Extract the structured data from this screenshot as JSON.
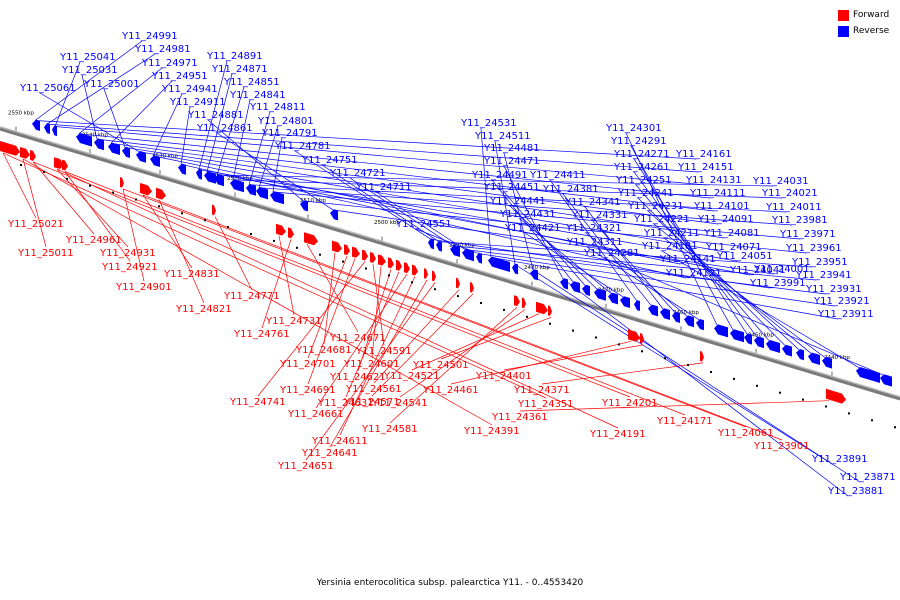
{
  "caption": "Yersinia enterocolitica subsp. palearctica Y11. - 0..4553420",
  "legend": [
    {
      "label": "Forward",
      "color": "#ff0000"
    },
    {
      "label": "Reverse",
      "color": "#0000ff"
    }
  ],
  "colors": {
    "forward": "#ff0000",
    "reverse": "#0000ff",
    "backbone": "#7a7a7a"
  },
  "scale_ticks": [
    "2550 kbp",
    "2540 kbp",
    "2530 kbp",
    "2520 kbp",
    "2510 kbp",
    "2500 kbp",
    "2490 kbp",
    "2480 kbp",
    "2470 kbp",
    "2460 kbp",
    "2450 kbp",
    "2440 kbp"
  ],
  "reverse_genes": [
    "Y11_24991",
    "Y11_24981",
    "Y11_25041",
    "Y11_24971",
    "Y11_25031",
    "Y11_24951",
    "Y11_25001",
    "Y11_25061",
    "Y11_24941",
    "Y11_24911",
    "Y11_24891",
    "Y11_24871",
    "Y11_24851",
    "Y11_24841",
    "Y11_24811",
    "Y11_24801",
    "Y11_24791",
    "Y11_24881",
    "Y11_24861",
    "Y11_24781",
    "Y11_24751",
    "Y11_24721",
    "Y11_24711",
    "Y11_24551",
    "Y11_24531",
    "Y11_24511",
    "Y11_24481",
    "Y11_24471",
    "Y11_24491",
    "Y11_24451",
    "Y11_24441",
    "Y11_24431",
    "Y11_24421",
    "Y11_24411",
    "Y11_24381",
    "Y11_24341",
    "Y11_24331",
    "Y11_24321",
    "Y11_24311",
    "Y11_24301",
    "Y11_24291",
    "Y11_24271",
    "Y11_24261",
    "Y11_24251",
    "Y11_24241",
    "Y11_24231",
    "Y11_24221",
    "Y11_24211",
    "Y11_24181",
    "Y11_24281",
    "Y11_24161",
    "Y11_24151",
    "Y11_24131",
    "Y11_24111",
    "Y11_24101",
    "Y11_24091",
    "Y11_24081",
    "Y11_24071",
    "Y11_24141",
    "Y11_24121",
    "Y11_24051",
    "Y11_24041",
    "Y11_24031",
    "Y11_24021",
    "Y11_24011",
    "Y11_23981",
    "Y11_23971",
    "Y11_23961",
    "Y11_24001",
    "Y11_23991",
    "Y11_23951",
    "Y11_23941",
    "Y11_23931",
    "Y11_23921",
    "Y11_23911",
    "Y11_23891",
    "Y11_23871",
    "Y11_23881"
  ],
  "forward_genes": [
    "Y11_25021",
    "Y11_25011",
    "Y11_24961",
    "Y11_24931",
    "Y11_24921",
    "Y11_24901",
    "Y11_24831",
    "Y11_24821",
    "Y11_24771",
    "Y11_24731",
    "Y11_24761",
    "Y11_24671",
    "Y11_24681",
    "Y11_24701",
    "Y11_24691",
    "Y11_24741",
    "Y11_24591",
    "Y11_24601",
    "Y11_24621",
    "Y11_24631",
    "Y11_24661",
    "Y11_24611",
    "Y11_24641",
    "Y11_24651",
    "Y11_24561",
    "Y11_24571",
    "Y11_24581",
    "Y11_24541",
    "Y11_24521",
    "Y11_24501",
    "Y11_24461",
    "Y11_24401",
    "Y11_24371",
    "Y11_24361",
    "Y11_24351",
    "Y11_24391",
    "Y11_24201",
    "Y11_24191",
    "Y11_24171",
    "Y11_24061",
    "Y11_23901"
  ]
}
